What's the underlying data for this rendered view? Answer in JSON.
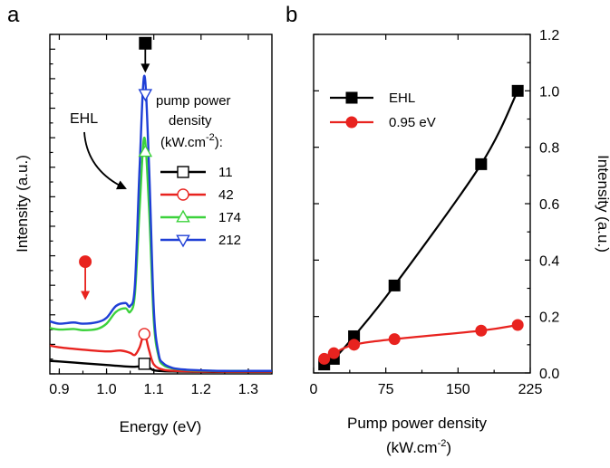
{
  "chart_data": [
    {
      "panel": "a",
      "type": "line",
      "title": "",
      "xlabel": "Energy (eV)",
      "ylabel": "Intensity (a.u.)",
      "xlim": [
        0.88,
        1.35
      ],
      "ylim": [
        0,
        1.15
      ],
      "x_ticks": [
        0.9,
        1.0,
        1.1,
        1.2,
        1.3
      ],
      "x_tick_labels": [
        "0.9",
        "1.0",
        "1.1",
        "1.2",
        "1.3"
      ],
      "y_tick_labels_shown": false,
      "grid": false,
      "legend": {
        "title_lines": [
          "pump power",
          "density"
        ],
        "unit_text": "(kW.cm",
        "unit_sup": "-2",
        "unit_tail": "):",
        "placement": "top-right"
      },
      "annotations": {
        "ehl_label": "EHL"
      },
      "series": [
        {
          "name": "11",
          "color": "#000000",
          "marker": "square-open",
          "marker_x": 1.08,
          "x": [
            0.88,
            0.9,
            0.95,
            1.0,
            1.04,
            1.06,
            1.07,
            1.08,
            1.09,
            1.1,
            1.12,
            1.15,
            1.2,
            1.25,
            1.3,
            1.35
          ],
          "y": [
            0.044,
            0.042,
            0.036,
            0.03,
            0.025,
            0.024,
            0.026,
            0.034,
            0.022,
            0.012,
            0.009,
            0.008,
            0.007,
            0.007,
            0.007,
            0.007
          ]
        },
        {
          "name": "42",
          "color": "#e8231f",
          "marker": "circle-open",
          "marker_x": 1.08,
          "x": [
            0.88,
            0.9,
            0.95,
            1.0,
            1.03,
            1.05,
            1.06,
            1.07,
            1.08,
            1.09,
            1.1,
            1.12,
            1.15,
            1.2,
            1.25,
            1.3,
            1.35
          ],
          "y": [
            0.096,
            0.09,
            0.082,
            0.076,
            0.079,
            0.071,
            0.064,
            0.09,
            0.135,
            0.08,
            0.032,
            0.014,
            0.01,
            0.008,
            0.008,
            0.008,
            0.008
          ]
        },
        {
          "name": "174",
          "color": "#3cd23c",
          "marker": "triangle-up-open",
          "marker_x": 1.082,
          "x": [
            0.88,
            0.9,
            0.93,
            0.95,
            0.98,
            1.0,
            1.02,
            1.04,
            1.05,
            1.06,
            1.07,
            1.08,
            1.09,
            1.1,
            1.11,
            1.12,
            1.14,
            1.17,
            1.2,
            1.25,
            1.3,
            1.35
          ],
          "y": [
            0.155,
            0.15,
            0.152,
            0.148,
            0.152,
            0.17,
            0.21,
            0.222,
            0.21,
            0.27,
            0.56,
            0.8,
            0.56,
            0.18,
            0.06,
            0.03,
            0.018,
            0.013,
            0.011,
            0.01,
            0.01,
            0.01
          ]
        },
        {
          "name": "212",
          "color": "#1f3fd6",
          "marker": "triangle-down-open",
          "marker_x": 1.082,
          "x": [
            0.88,
            0.9,
            0.93,
            0.95,
            0.98,
            1.0,
            1.02,
            1.04,
            1.05,
            1.06,
            1.07,
            1.08,
            1.09,
            1.1,
            1.11,
            1.12,
            1.14,
            1.17,
            1.2,
            1.25,
            1.3,
            1.35
          ],
          "y": [
            0.178,
            0.17,
            0.174,
            0.17,
            0.175,
            0.19,
            0.23,
            0.24,
            0.23,
            0.3,
            0.7,
            1.01,
            0.7,
            0.22,
            0.07,
            0.036,
            0.02,
            0.014,
            0.012,
            0.01,
            0.01,
            0.01
          ]
        }
      ],
      "arrows": [
        {
          "color": "#000000",
          "marker": "square-filled",
          "x": 1.082,
          "y_from": 1.12,
          "y_to": 1.02
        },
        {
          "color": "#e8231f",
          "marker": "circle-filled",
          "x": 0.955,
          "y_from": 0.38,
          "y_to": 0.25
        }
      ]
    },
    {
      "panel": "b",
      "type": "line",
      "title": "",
      "xlabel_line1": "Pump power density",
      "xlabel_line2_text": "(kW.cm",
      "xlabel_line2_sup": "-2",
      "xlabel_line2_tail": ")",
      "ylabel": "Intensity (a.u.)",
      "xlim": [
        0,
        225
      ],
      "ylim": [
        0,
        1.2
      ],
      "x_ticks": [
        0,
        75,
        150,
        225
      ],
      "x_tick_labels": [
        "0",
        "75",
        "150",
        "225"
      ],
      "y_ticks": [
        0.0,
        0.2,
        0.4,
        0.6,
        0.8,
        1.0,
        1.2
      ],
      "y_tick_labels": [
        "0.0",
        "0.2",
        "0.4",
        "0.6",
        "0.8",
        "1.0",
        "1.2"
      ],
      "y_axis_side": "right",
      "grid": false,
      "legend_placement": "top-left",
      "series": [
        {
          "name": "EHL",
          "color": "#000000",
          "marker": "square-filled",
          "x": [
            11,
            21,
            42,
            84,
            174,
            212
          ],
          "y": [
            0.03,
            0.05,
            0.13,
            0.31,
            0.74,
            1.0
          ]
        },
        {
          "name": "0.95 eV",
          "color": "#e8231f",
          "marker": "circle-filled",
          "x": [
            11,
            21,
            42,
            84,
            174,
            212
          ],
          "y": [
            0.05,
            0.07,
            0.1,
            0.12,
            0.15,
            0.17
          ]
        }
      ]
    }
  ],
  "colors": {
    "axis": "#000000",
    "black": "#000000",
    "red": "#e8231f",
    "green": "#3cd23c",
    "blue": "#1f3fd6"
  }
}
